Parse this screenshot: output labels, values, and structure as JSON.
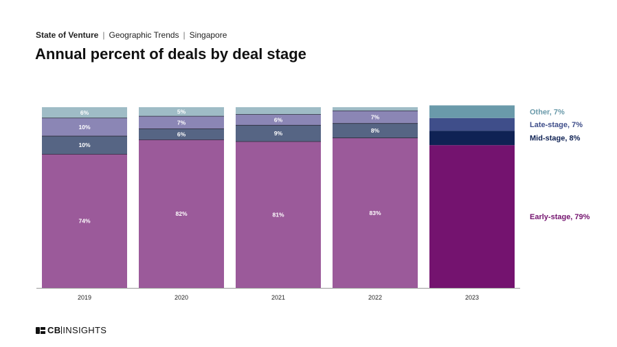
{
  "header": {
    "breadcrumb": [
      "State of Venture",
      "Geographic Trends",
      "Singapore"
    ],
    "title": "Annual percent of deals by deal stage"
  },
  "logo": {
    "text_bold": "CB",
    "text_rest": "INSIGHTS"
  },
  "colors": {
    "early": "#9b5a9a",
    "mid": "#566584",
    "late": "#8b86b5",
    "other": "#9fbcc6",
    "early_2023": "#74136f",
    "mid_2023": "#0f2254",
    "late_2023": "#3f4e8a",
    "other_2023": "#6a9aaa"
  },
  "chart_data": {
    "type": "bar",
    "stacked": true,
    "categories": [
      "2019",
      "2020",
      "2021",
      "2022",
      "2023"
    ],
    "ylim": [
      0,
      100
    ],
    "grid": false,
    "legend_position": "right",
    "series": [
      {
        "key": "early",
        "values": [
          74,
          82,
          81,
          83,
          79
        ],
        "labels": [
          "74%",
          "82%",
          "81%",
          "83%",
          ""
        ]
      },
      {
        "key": "mid",
        "values": [
          10,
          6,
          9,
          8,
          8
        ],
        "labels": [
          "10%",
          "6%",
          "9%",
          "8%",
          ""
        ]
      },
      {
        "key": "late",
        "values": [
          10,
          7,
          6,
          7,
          7
        ],
        "labels": [
          "10%",
          "7%",
          "6%",
          "7%",
          ""
        ]
      },
      {
        "key": "other",
        "values": [
          6,
          5,
          4,
          2,
          7
        ],
        "labels": [
          "6%",
          "5%",
          "",
          "",
          ""
        ]
      }
    ],
    "legend": [
      {
        "key": "other",
        "label": "Other, 7%"
      },
      {
        "key": "late",
        "label": "Late-stage, 7%"
      },
      {
        "key": "mid",
        "label": "Mid-stage, 8%"
      },
      {
        "key": "early",
        "label": "Early-stage, 79%"
      }
    ]
  }
}
